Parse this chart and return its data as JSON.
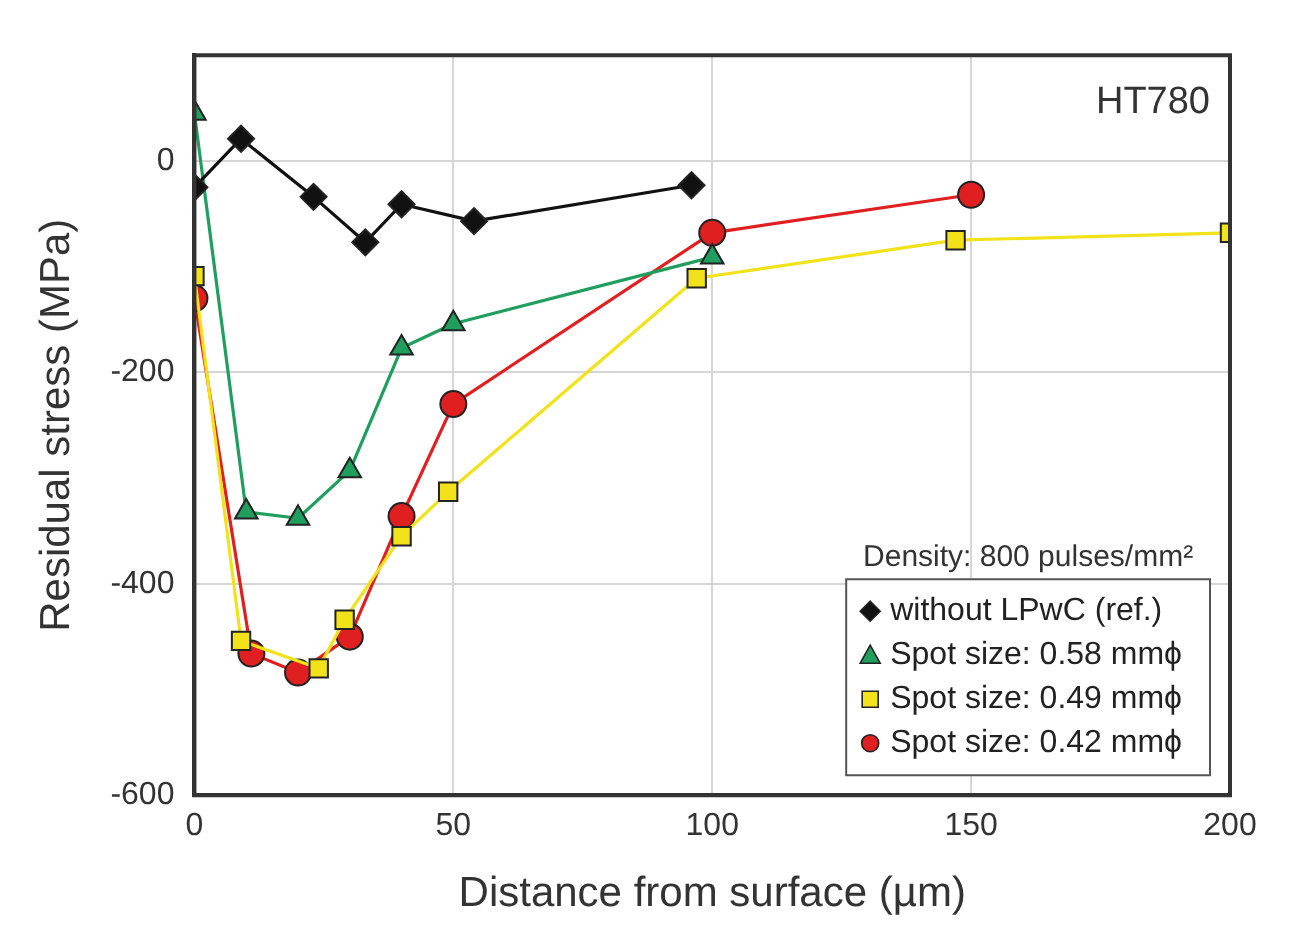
{
  "chart_data": {
    "type": "line",
    "xlabel": "Distance from surface (µm)",
    "ylabel": "Residual stress (MPa)",
    "annotations": [
      "HT780"
    ],
    "legend_title": "Density: 800 pulses/mm²",
    "legend": "bottom right",
    "grid": true,
    "xlim": [
      0,
      200
    ],
    "xticks": [
      0,
      50,
      100,
      150,
      200
    ],
    "ylim": [
      -600,
      100
    ],
    "yticks": [
      -600,
      -400,
      -200,
      0
    ],
    "series": [
      {
        "name": "without LPwC (ref.)",
        "color": "#111111",
        "marker": "diamond",
        "x": [
          0,
          9,
          23,
          33,
          40,
          54,
          96
        ],
        "values": [
          -25,
          21,
          -34,
          -77,
          -41,
          -57,
          -23
        ]
      },
      {
        "name": "Spot size: 0.58 mmϕ",
        "color": "#1f9e5e",
        "marker": "triangle",
        "x": [
          0,
          10,
          20,
          30,
          40,
          50,
          100
        ],
        "values": [
          45,
          -332,
          -338,
          -293,
          -177,
          -154,
          -91
        ]
      },
      {
        "name": "Spot size: 0.49 mmϕ",
        "color": "#f2e21a",
        "marker": "square",
        "x": [
          0,
          9,
          24,
          29,
          40,
          49,
          97,
          147,
          200
        ],
        "values": [
          -109,
          -454,
          -480,
          -434,
          -355,
          -313,
          -111,
          -75,
          -68
        ]
      },
      {
        "name": "Spot size: 0.42 mmϕ",
        "color": "#e02020",
        "marker": "circle",
        "x": [
          0,
          11,
          20,
          30,
          40,
          50,
          100,
          150
        ],
        "values": [
          -130,
          -466,
          -484,
          -450,
          -336,
          -230,
          -68,
          -32
        ]
      }
    ]
  }
}
